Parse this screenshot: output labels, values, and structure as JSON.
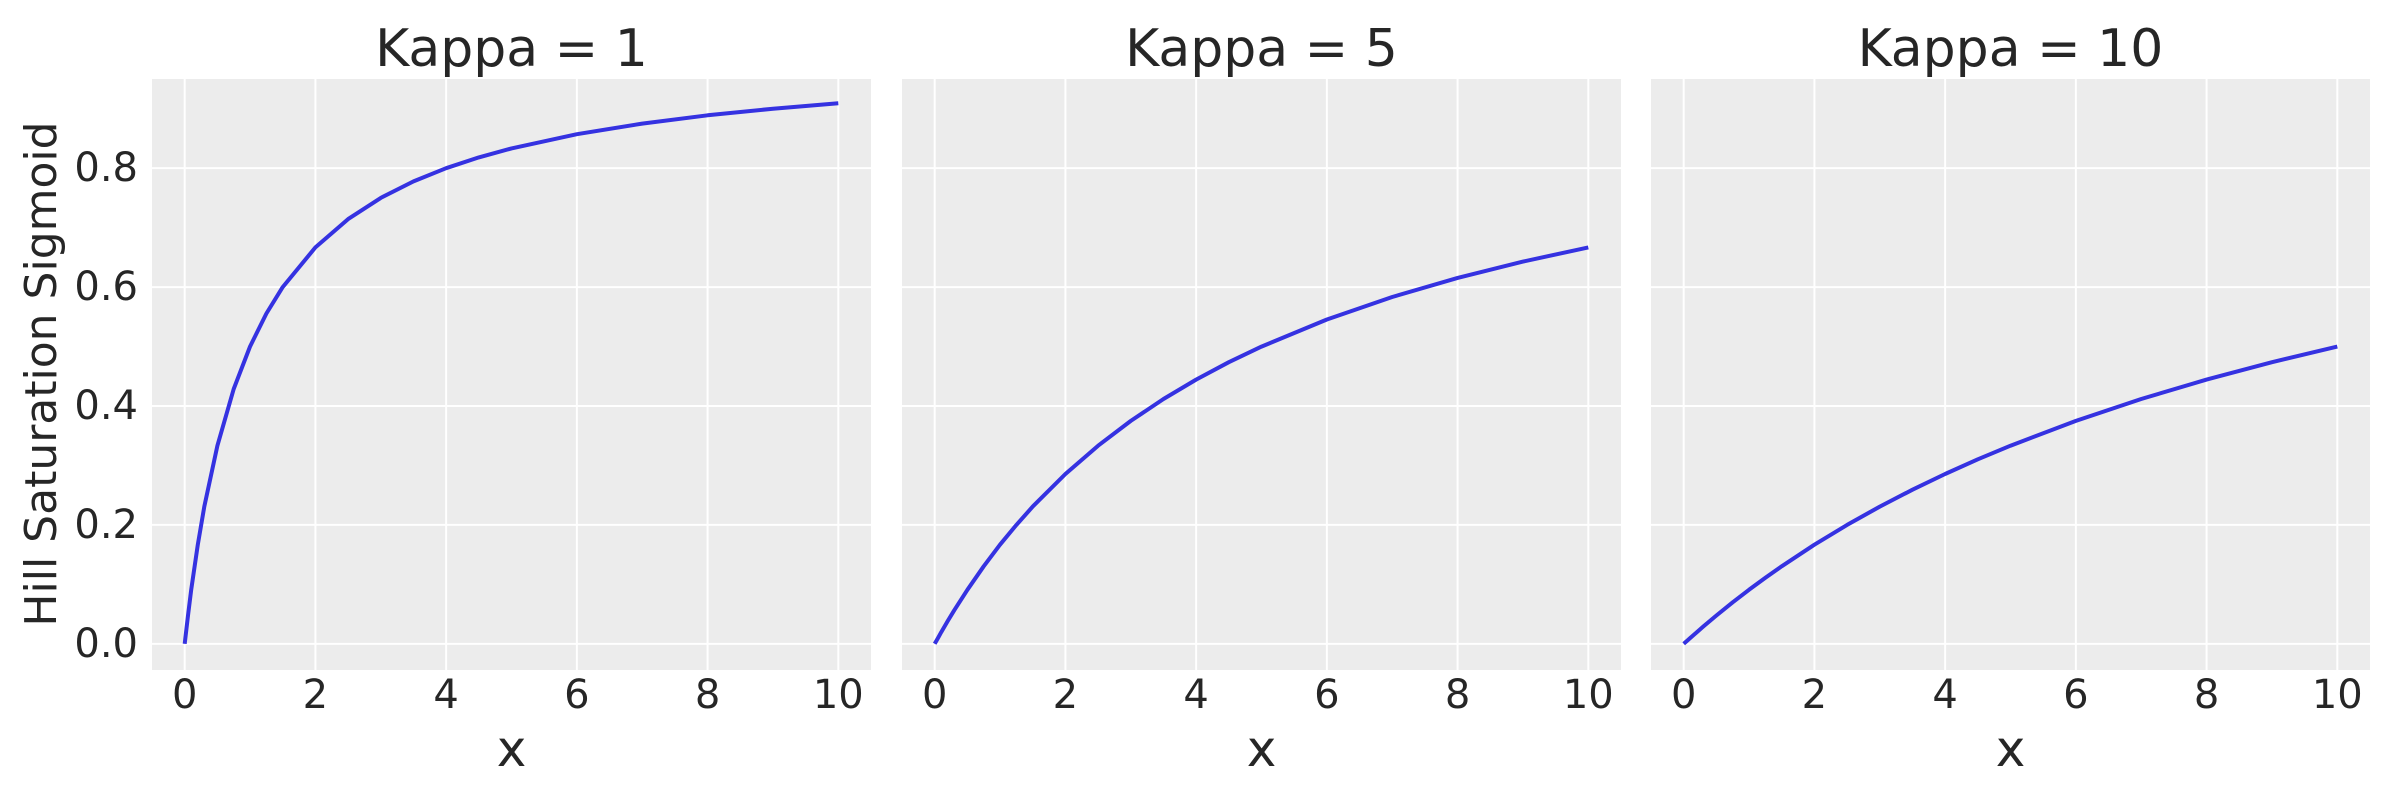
{
  "figure": {
    "background_color": "#ffffff",
    "axes_background_color": "#ececec",
    "grid_color": "#ffffff",
    "text_color": "#262626",
    "curve_color": "#3532e1",
    "ylabel": "Hill Saturation Sigmoid"
  },
  "chart_data": [
    {
      "type": "line",
      "title": "Kappa = 1",
      "kappa": 1,
      "xlabel": "x",
      "ylabel": "Hill Saturation Sigmoid",
      "xlim": [
        -0.5,
        10.5
      ],
      "ylim": [
        -0.044,
        0.95
      ],
      "grid": true,
      "legend_position": "none",
      "xticks": {
        "values": [
          0,
          2,
          4,
          6,
          8,
          10
        ],
        "labels": [
          "0",
          "2",
          "4",
          "6",
          "8",
          "10"
        ]
      },
      "yticks": {
        "values": [
          0.0,
          0.2,
          0.4,
          0.6,
          0.8
        ],
        "labels": [
          "0.0",
          "0.2",
          "0.4",
          "0.6",
          "0.8"
        ]
      },
      "x": [
        0,
        0.05,
        0.1,
        0.2,
        0.3,
        0.5,
        0.75,
        1,
        1.25,
        1.5,
        2,
        2.5,
        3,
        3.5,
        4,
        4.5,
        5,
        6,
        7,
        8,
        9,
        10
      ],
      "y": [
        0,
        0.0476,
        0.0909,
        0.1667,
        0.2308,
        0.3333,
        0.4286,
        0.5,
        0.5556,
        0.6,
        0.6667,
        0.7143,
        0.75,
        0.7778,
        0.8,
        0.8182,
        0.8333,
        0.8571,
        0.875,
        0.8889,
        0.9,
        0.9091
      ]
    },
    {
      "type": "line",
      "title": "Kappa = 5",
      "kappa": 5,
      "xlabel": "x",
      "ylabel": "Hill Saturation Sigmoid",
      "xlim": [
        -0.5,
        10.5
      ],
      "ylim": [
        -0.044,
        0.95
      ],
      "grid": true,
      "legend_position": "none",
      "xticks": {
        "values": [
          0,
          2,
          4,
          6,
          8,
          10
        ],
        "labels": [
          "0",
          "2",
          "4",
          "6",
          "8",
          "10"
        ]
      },
      "yticks": {
        "values": [
          0.0,
          0.2,
          0.4,
          0.6,
          0.8
        ],
        "labels": [
          "0.0",
          "0.2",
          "0.4",
          "0.6",
          "0.8"
        ]
      },
      "x": [
        0,
        0.05,
        0.1,
        0.2,
        0.3,
        0.5,
        0.75,
        1,
        1.25,
        1.5,
        2,
        2.5,
        3,
        3.5,
        4,
        4.5,
        5,
        6,
        7,
        8,
        9,
        10
      ],
      "y": [
        0,
        0.0099,
        0.0196,
        0.0385,
        0.0566,
        0.0909,
        0.1304,
        0.1667,
        0.2,
        0.2308,
        0.2857,
        0.3333,
        0.375,
        0.4118,
        0.4444,
        0.4737,
        0.5,
        0.5455,
        0.5833,
        0.6154,
        0.6429,
        0.6667
      ]
    },
    {
      "type": "line",
      "title": "Kappa = 10",
      "kappa": 10,
      "xlabel": "x",
      "ylabel": "Hill Saturation Sigmoid",
      "xlim": [
        -0.5,
        10.5
      ],
      "ylim": [
        -0.044,
        0.95
      ],
      "grid": true,
      "legend_position": "none",
      "xticks": {
        "values": [
          0,
          2,
          4,
          6,
          8,
          10
        ],
        "labels": [
          "0",
          "2",
          "4",
          "6",
          "8",
          "10"
        ]
      },
      "yticks": {
        "values": [
          0.0,
          0.2,
          0.4,
          0.6,
          0.8
        ],
        "labels": [
          "0.0",
          "0.2",
          "0.4",
          "0.6",
          "0.8"
        ]
      },
      "x": [
        0,
        0.05,
        0.1,
        0.2,
        0.3,
        0.5,
        0.75,
        1,
        1.25,
        1.5,
        2,
        2.5,
        3,
        3.5,
        4,
        4.5,
        5,
        6,
        7,
        8,
        9,
        10
      ],
      "y": [
        0,
        0.005,
        0.0099,
        0.0196,
        0.0291,
        0.0476,
        0.0698,
        0.0909,
        0.1111,
        0.1304,
        0.1667,
        0.2,
        0.2308,
        0.2593,
        0.2857,
        0.3103,
        0.3333,
        0.375,
        0.4118,
        0.4444,
        0.4737,
        0.5
      ]
    }
  ]
}
